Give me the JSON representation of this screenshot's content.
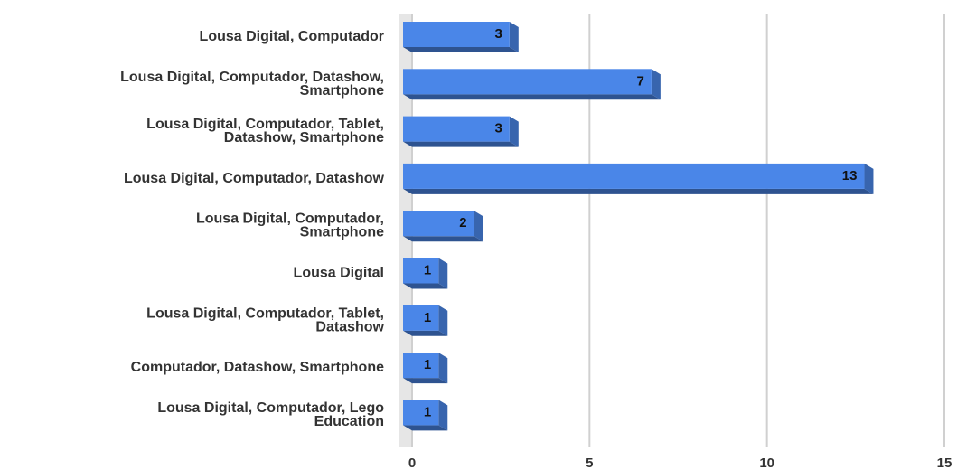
{
  "chart_data": {
    "type": "bar",
    "orientation": "horizontal",
    "categories": [
      "Lousa Digital, Computador",
      "Lousa Digital, Computador, Datashow,\nSmartphone",
      "Lousa Digital, Computador, Tablet,\nDatashow, Smartphone",
      "Lousa Digital, Computador, Datashow",
      "Lousa Digital, Computador,\nSmartphone",
      "Lousa Digital",
      "Lousa Digital, Computador, Tablet,\nDatashow",
      "Computador, Datashow, Smartphone",
      "Lousa Digital, Computador, Lego\nEducation"
    ],
    "values": [
      3,
      7,
      3,
      13,
      2,
      1,
      1,
      1,
      1
    ],
    "color": "#4a86e8",
    "xlim": [
      0,
      15
    ],
    "xticks": [
      0,
      5,
      10,
      15
    ],
    "grid": true
  }
}
